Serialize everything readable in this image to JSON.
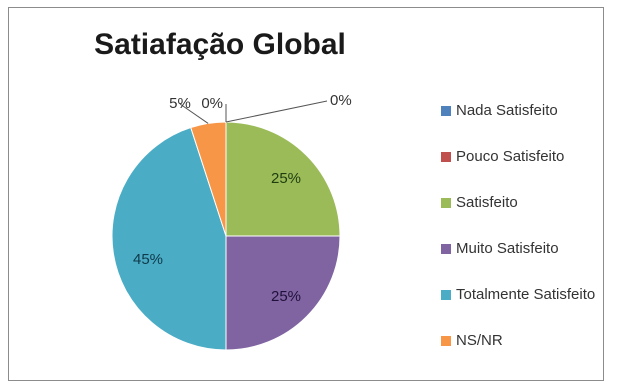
{
  "chart_data": {
    "type": "pie",
    "title": "Satiafação Global",
    "categories": [
      "Nada Satisfeito",
      "Pouco Satisfeito",
      "Satisfeito",
      "Muito Satisfeito",
      "Totalmente Satisfeito",
      "NS/NR"
    ],
    "values": [
      0,
      0,
      25,
      25,
      45,
      5
    ],
    "data_labels": [
      "0%",
      "0%",
      "25%",
      "25%",
      "45%",
      "5%"
    ],
    "colors": [
      "#4f81bd",
      "#c0504d",
      "#9bbb59",
      "#8064a2",
      "#4bacc6",
      "#f79646"
    ],
    "legend_position": "right"
  }
}
